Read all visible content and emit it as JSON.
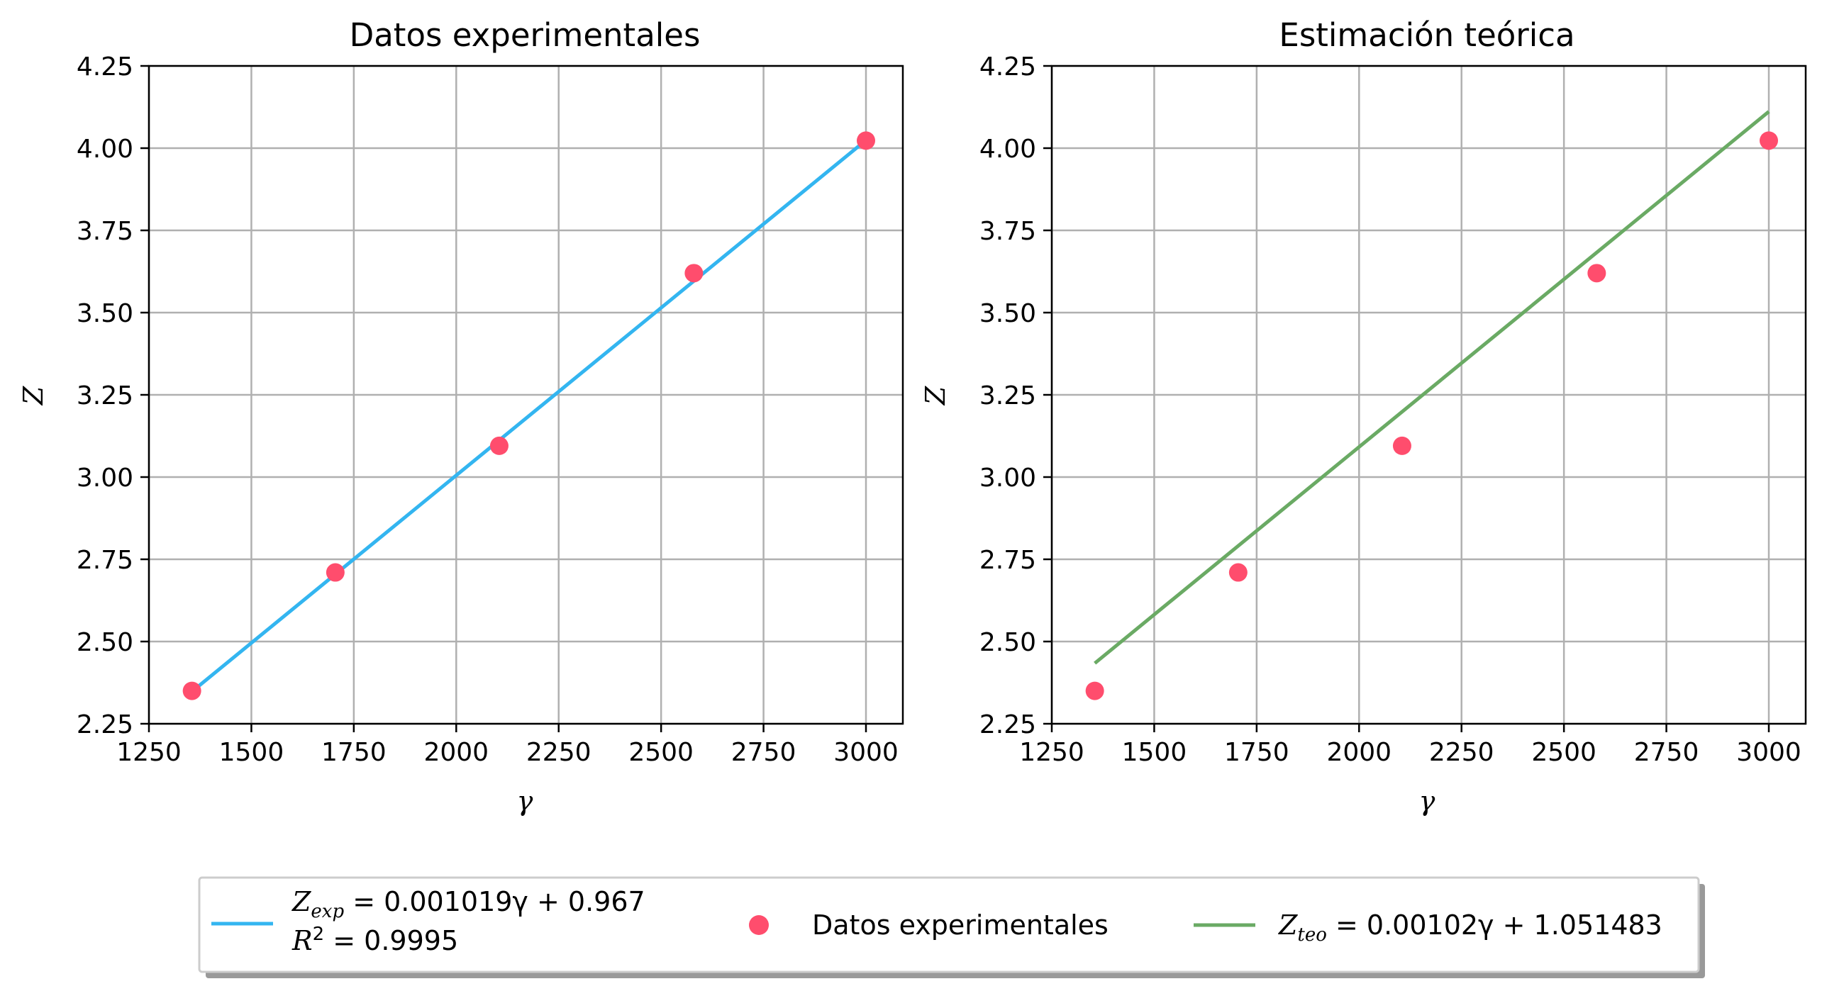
{
  "chart_data": [
    {
      "type": "line",
      "title": "Datos experimentales",
      "xlabel": "γ",
      "ylabel": "Z",
      "xlim": [
        1250,
        3090
      ],
      "ylim": [
        2.25,
        4.25
      ],
      "xticks": [
        "1250",
        "1500",
        "1750",
        "2000",
        "2250",
        "2500",
        "2750",
        "3000"
      ],
      "yticks": [
        "2.25",
        "2.50",
        "2.75",
        "3.00",
        "3.25",
        "3.50",
        "3.75",
        "4.00",
        "4.25"
      ],
      "grid": true,
      "series": [
        {
          "name": "Z_exp = 0.001019γ + 0.967 / R² = 0.9995",
          "kind": "line",
          "color": "#33b5f0",
          "x": [
            1355,
            3000
          ],
          "y": [
            2.348,
            4.024
          ]
        },
        {
          "name": "Datos experimentales",
          "kind": "scatter",
          "color": "#ff4d6d",
          "x": [
            1355,
            1705,
            2105,
            2580,
            3000
          ],
          "y": [
            2.35,
            2.71,
            3.095,
            3.62,
            4.023
          ]
        }
      ]
    },
    {
      "type": "line",
      "title": "Estimación teórica",
      "xlabel": "γ",
      "ylabel": "Z",
      "xlim": [
        1250,
        3090
      ],
      "ylim": [
        2.25,
        4.25
      ],
      "xticks": [
        "1250",
        "1500",
        "1750",
        "2000",
        "2250",
        "2500",
        "2750",
        "3000"
      ],
      "yticks": [
        "2.25",
        "2.50",
        "2.75",
        "3.00",
        "3.25",
        "3.50",
        "3.75",
        "4.00",
        "4.25"
      ],
      "grid": true,
      "series": [
        {
          "name": "Z_teo = 0.00102γ + 1.051483",
          "kind": "line",
          "color": "#6aaa64",
          "x": [
            1355,
            3000
          ],
          "y": [
            2.434,
            4.111
          ]
        },
        {
          "name": "Datos experimentales",
          "kind": "scatter",
          "color": "#ff4d6d",
          "x": [
            1355,
            1705,
            2105,
            2580,
            3000
          ],
          "y": [
            2.35,
            2.71,
            3.095,
            3.62,
            4.023
          ]
        }
      ]
    }
  ],
  "legend": {
    "placement": "bottom-center",
    "entries": [
      {
        "line1_sym": "Z",
        "line1_sub": "exp",
        "line1_rest": " = 0.001019γ + 0.967",
        "line2_sym": "R",
        "line2_sup": "2",
        "line2_rest": " = 0.9995",
        "color": "#33b5f0"
      },
      {
        "label": "Datos experimentales",
        "color": "#ff4d6d"
      },
      {
        "sym": "Z",
        "sub": "teo",
        "rest": " = 0.00102γ + 1.051483",
        "color": "#6aaa64"
      }
    ]
  }
}
